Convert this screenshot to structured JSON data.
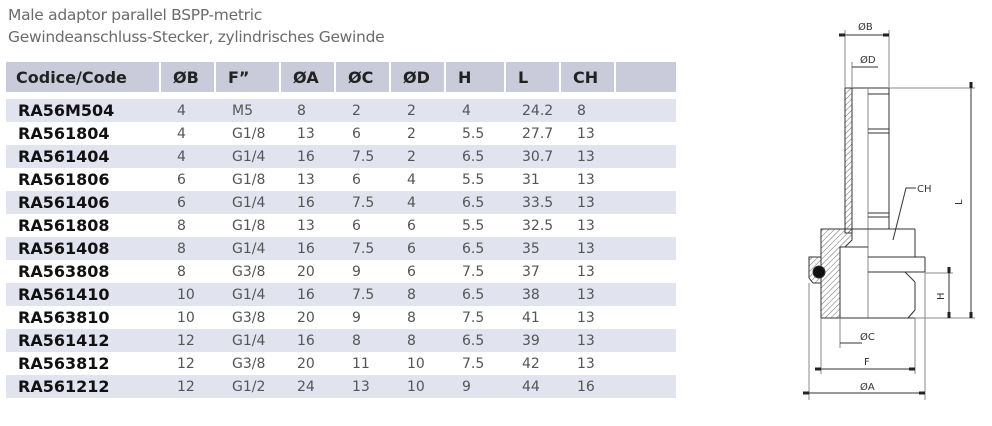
{
  "title_line1": "Male adaptor parallel BSPP-metric",
  "title_line2": "Gewindeanschluss-Stecker, zylindrisches Gewinde",
  "table": {
    "headers": [
      "Codice/Code",
      "ØB",
      "F”",
      "ØA",
      "ØC",
      "ØD",
      "H",
      "L",
      "CH",
      ""
    ],
    "rows": [
      [
        "RA56M504",
        "4",
        "M5",
        "8",
        "2",
        "2",
        "4",
        "24.2",
        "8"
      ],
      [
        "RA561804",
        "4",
        "G1/8",
        "13",
        "6",
        "2",
        "5.5",
        "27.7",
        "13"
      ],
      [
        "RA561404",
        "4",
        "G1/4",
        "16",
        "7.5",
        "2",
        "6.5",
        "30.7",
        "13"
      ],
      [
        "RA561806",
        "6",
        "G1/8",
        "13",
        "6",
        "4",
        "5.5",
        "31",
        "13"
      ],
      [
        "RA561406",
        "6",
        "G1/4",
        "16",
        "7.5",
        "4",
        "6.5",
        "33.5",
        "13"
      ],
      [
        "RA561808",
        "8",
        "G1/8",
        "13",
        "6",
        "6",
        "5.5",
        "32.5",
        "13"
      ],
      [
        "RA561408",
        "8",
        "G1/4",
        "16",
        "7.5",
        "6",
        "6.5",
        "35",
        "13"
      ],
      [
        "RA563808",
        "8",
        "G3/8",
        "20",
        "9",
        "6",
        "7.5",
        "37",
        "13"
      ],
      [
        "RA561410",
        "10",
        "G1/4",
        "16",
        "7.5",
        "8",
        "6.5",
        "38",
        "13"
      ],
      [
        "RA563810",
        "10",
        "G3/8",
        "20",
        "9",
        "8",
        "7.5",
        "41",
        "13"
      ],
      [
        "RA561412",
        "12",
        "G1/4",
        "16",
        "8",
        "8",
        "6.5",
        "39",
        "13"
      ],
      [
        "RA563812",
        "12",
        "G3/8",
        "20",
        "11",
        "10",
        "7.5",
        "42",
        "13"
      ],
      [
        "RA561212",
        "12",
        "G1/2",
        "24",
        "13",
        "10",
        "9",
        "44",
        "16"
      ]
    ]
  },
  "drawing": {
    "labels": {
      "b": "ØB",
      "d": "ØD",
      "ch": "CH",
      "l": "L",
      "h": "H",
      "c": "ØC",
      "f": "F",
      "a": "ØA"
    }
  }
}
